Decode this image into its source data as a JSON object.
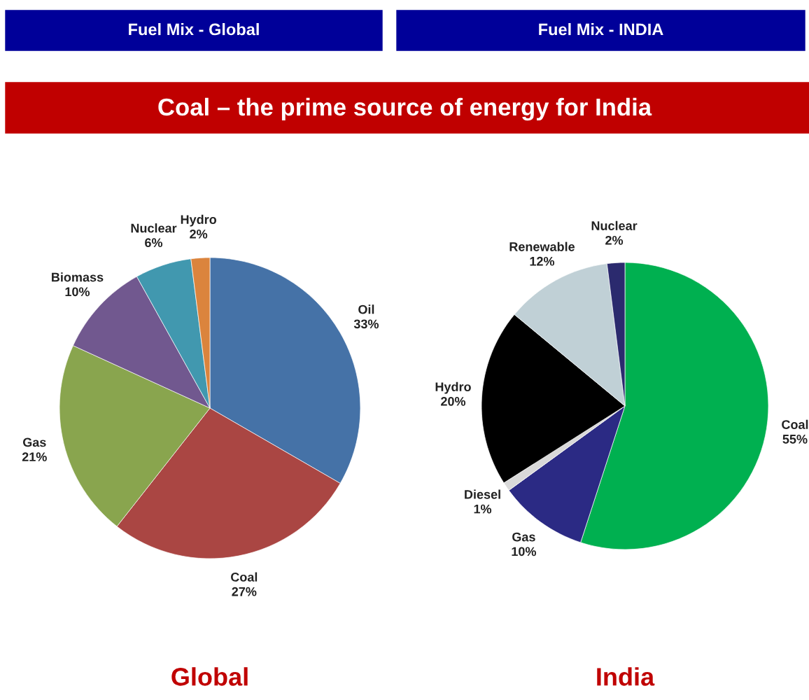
{
  "chart_data": [
    {
      "type": "pie",
      "title": "Fuel Mix - Global",
      "subtitle": "Global",
      "annotations": [
        "Coal – the prime source of energy for India"
      ],
      "categories": [
        "Oil",
        "Coal",
        "Gas",
        "Biomass",
        "Nuclear",
        "Hydro"
      ],
      "values": [
        33,
        27,
        21,
        10,
        6,
        2
      ],
      "value_labels": [
        "33%",
        "27%",
        "21%",
        "10%",
        "6%",
        "2%"
      ],
      "colors": [
        "#4572a7",
        "#aa4643",
        "#89a54e",
        "#71588f",
        "#4198af",
        "#db843d"
      ],
      "legend": false
    },
    {
      "type": "pie",
      "title": "Fuel Mix - INDIA",
      "subtitle": "India",
      "categories": [
        "Coal",
        "Gas",
        "Diesel",
        "Hydro",
        "Renewable",
        "Nuclear"
      ],
      "values": [
        55,
        10,
        1,
        20,
        12,
        2
      ],
      "value_labels": [
        "55%",
        "10%",
        "1%",
        "20%",
        "12%",
        "2%"
      ],
      "colors": [
        "#00b050",
        "#2b2a84",
        "#d9d9d9",
        "#000000",
        "#c0d0d6",
        "#2b2a6e"
      ],
      "legend": false
    }
  ]
}
